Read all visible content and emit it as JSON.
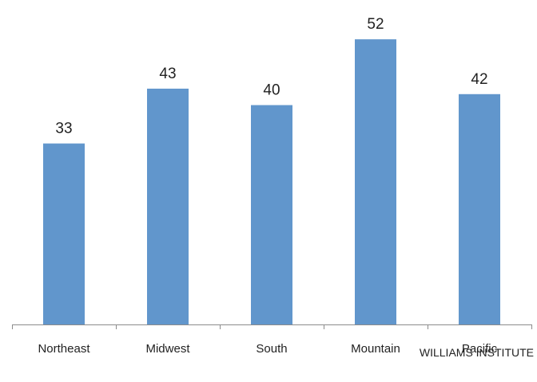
{
  "chart_data": {
    "type": "bar",
    "categories": [
      "Northeast",
      "Midwest",
      "South",
      "Mountain",
      "Pacific"
    ],
    "values": [
      33,
      43,
      40,
      52,
      42
    ],
    "ylim": [
      0,
      58
    ],
    "bar_color": "#6196cc",
    "grid": false
  },
  "source": "WILLIAMS INSTITUTE"
}
